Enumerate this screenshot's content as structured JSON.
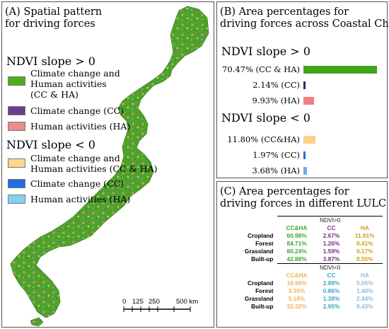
{
  "panelA": {
    "title_line1": "(A) Spatial pattern",
    "title_line2": "for driving forces",
    "pos_heading": "NDVI slope > 0",
    "neg_heading": "NDVI slope < 0",
    "legend_pos": [
      {
        "line1": "Climate change and",
        "line2": "Human activities",
        "line3": "(CC & HA)",
        "color": "#4caf1a"
      },
      {
        "line1": "Climate change (CC)",
        "color": "#6a3d8f"
      },
      {
        "line1": "Human activities (HA)",
        "color": "#f08a8a"
      }
    ],
    "legend_neg": [
      {
        "line1": "Climate change and",
        "line2": "Human activities (CC & HA)",
        "color": "#fdd88a"
      },
      {
        "line1": "Climate change (CC)",
        "color": "#1f6fe0"
      },
      {
        "line1": "Human activities (HA)",
        "color": "#7fd3f0"
      }
    ],
    "scale_ticks": [
      "0",
      "125",
      "250",
      "500 km"
    ]
  },
  "panelB": {
    "title_line1": "(B) Area percentages for",
    "title_line2": "driving forces across Coastal China",
    "pos_heading": "NDVI slope > 0",
    "neg_heading": "NDVI slope < 0"
  },
  "panelC": {
    "title_line1": "(C) Area percentages for",
    "title_line2": "driving forces in different LULC",
    "pos_header": "NDVI>0",
    "neg_header": "NDVI<0",
    "col_headers_pos": [
      "CC&HA",
      "CC",
      "HA"
    ],
    "col_headers_neg": [
      "CC&HA",
      "CC",
      "HA"
    ],
    "colors_pos": [
      "#3fa535",
      "#7a2a8f",
      "#d4a017"
    ],
    "colors_neg": [
      "#f2b25c",
      "#3aa7c9",
      "#8fbce0"
    ],
    "rows_pos": [
      {
        "label": "Cropland",
        "v": [
          "60.98%",
          "2.67%",
          "11.81%"
        ]
      },
      {
        "label": "Forest",
        "v": [
          "84.71%",
          "1.26%",
          "8.41%"
        ]
      },
      {
        "label": "Grassland",
        "v": [
          "80.24%",
          "1.59%",
          "9.17%"
        ]
      },
      {
        "label": "Built-up",
        "v": [
          "42.88%",
          "3.87%",
          "8.55%"
        ]
      }
    ],
    "rows_neg": [
      {
        "label": "Cropland",
        "v": [
          "18.60%",
          "2.89%",
          "5.05%"
        ]
      },
      {
        "label": "Forest",
        "v": [
          "3.35%",
          "0.86%",
          "1.40%"
        ]
      },
      {
        "label": "Grassland",
        "v": [
          "5.18%",
          "1.38%",
          "2.44%"
        ]
      },
      {
        "label": "Built-up",
        "v": [
          "33.32%",
          "2.95%",
          "8.43%"
        ]
      }
    ]
  },
  "chart_data": {
    "type": "bar",
    "orientation": "horizontal",
    "title": "(B) Area percentages for driving forces across Coastal China",
    "groups": [
      {
        "name": "NDVI slope > 0",
        "bars": [
          {
            "label": "70.47% (CC & HA)",
            "value": 70.47,
            "color": "#3fa51a"
          },
          {
            "label": "2.14% (CC)",
            "value": 2.14,
            "color": "#4b1a6b"
          },
          {
            "label": "9.93% (HA)",
            "value": 9.93,
            "color": "#f08080"
          }
        ]
      },
      {
        "name": "NDVI slope < 0",
        "bars": [
          {
            "label": "11.80% (CC&HA)",
            "value": 11.8,
            "color": "#fdd383"
          },
          {
            "label": "1.97% (CC)",
            "value": 1.97,
            "color": "#1f6fe0"
          },
          {
            "label": "3.68% (HA)",
            "value": 3.68,
            "color": "#6fa8f0"
          }
        ]
      }
    ],
    "xlim": [
      0,
      70.47
    ]
  }
}
